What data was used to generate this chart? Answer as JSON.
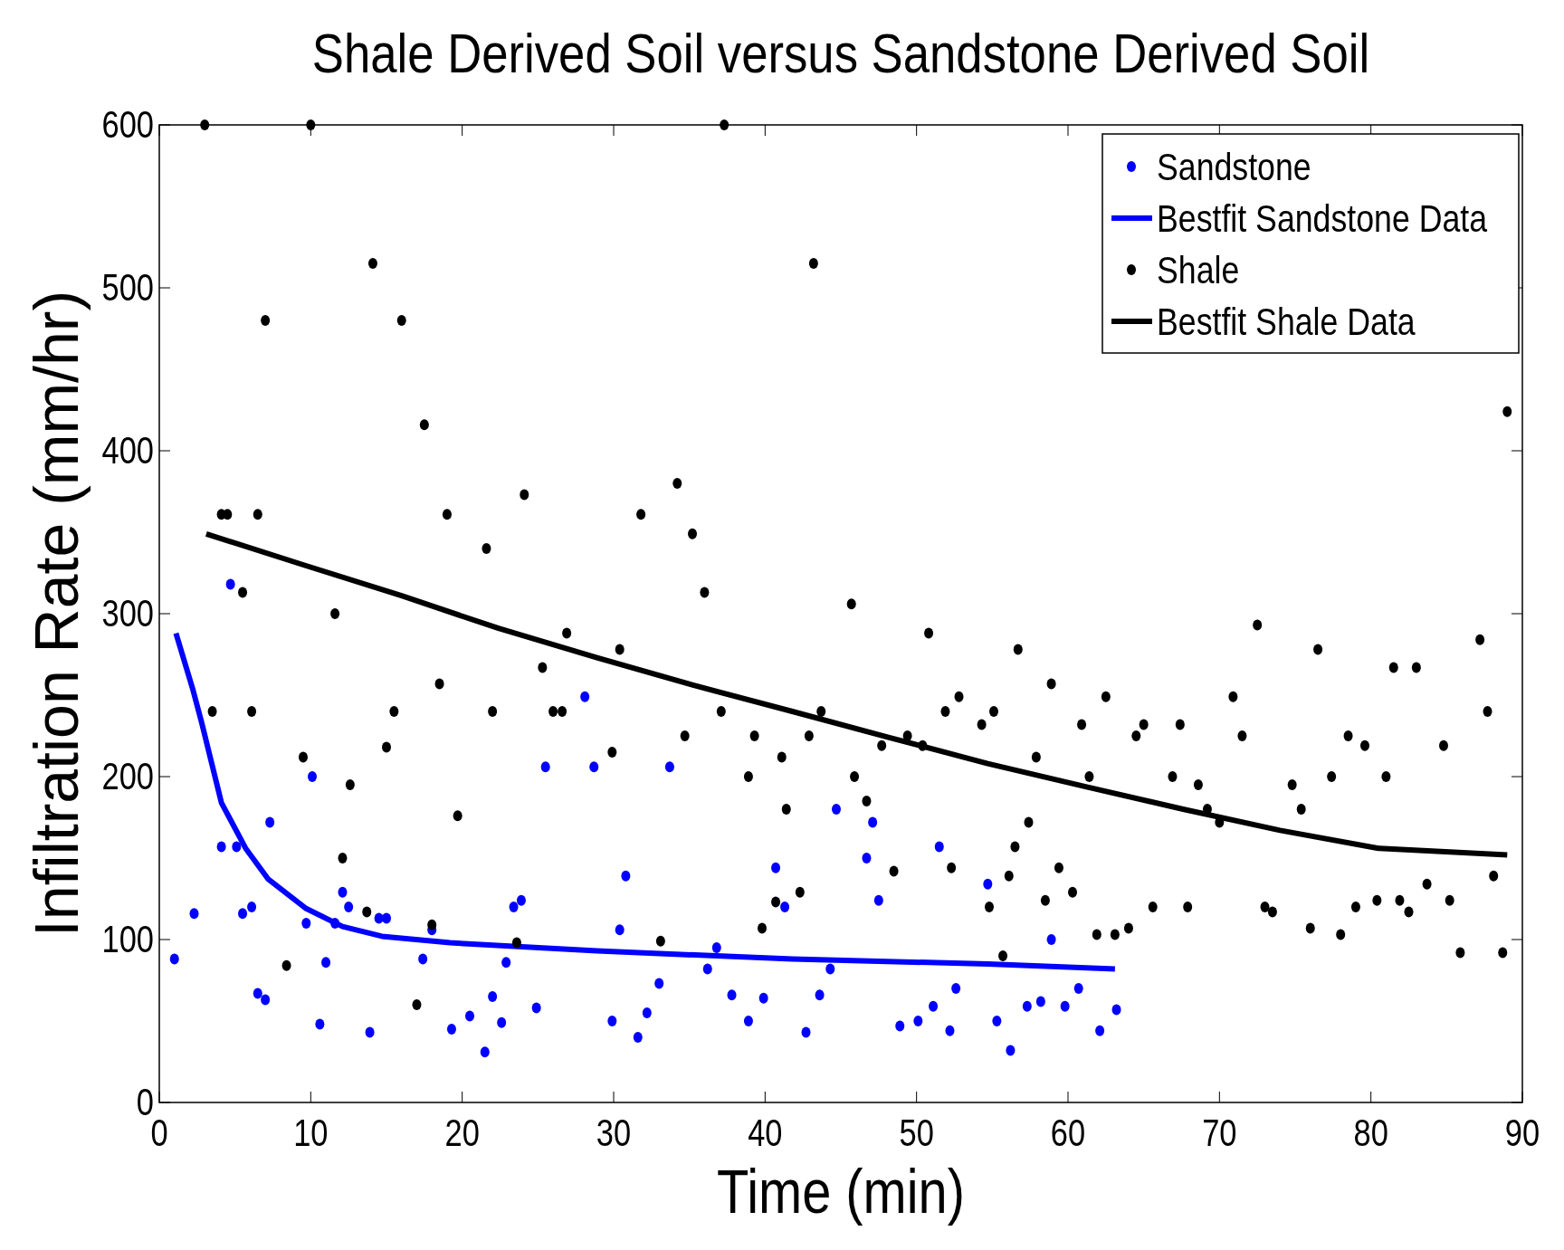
{
  "chart_data": {
    "type": "scatter",
    "title": "Shale Derived Soil versus Sandstone Derived Soil",
    "xlabel": "Time (min)",
    "ylabel": "Infiltration Rate (mm/hr)",
    "xlim": [
      0,
      90
    ],
    "ylim": [
      0,
      600
    ],
    "xticks": [
      0,
      10,
      20,
      30,
      40,
      50,
      60,
      70,
      80,
      90
    ],
    "yticks": [
      0,
      100,
      200,
      300,
      400,
      500,
      600
    ],
    "grid": false,
    "legend": "top right",
    "marker": "circle",
    "series": [
      {
        "name": "Sandstone",
        "color": "#0000ff",
        "x": [
          1.0,
          2.3,
          4.1,
          4.7,
          5.1,
          5.5,
          6.1,
          6.5,
          7.0,
          7.3,
          9.7,
          10.1,
          10.6,
          11.0,
          11.6,
          12.1,
          12.5,
          13.9,
          14.5,
          15.0,
          17.4,
          18.0,
          19.3,
          20.5,
          21.5,
          22.0,
          22.6,
          22.9,
          23.4,
          23.9,
          24.9,
          25.5,
          28.1,
          28.7,
          29.9,
          30.4,
          30.8,
          31.6,
          32.2,
          33.0,
          33.7,
          36.2,
          36.8,
          37.8,
          38.9,
          39.9,
          40.7,
          41.3,
          42.7,
          43.6,
          44.3,
          44.7,
          46.7,
          47.1,
          47.5,
          48.9,
          50.1,
          51.1,
          51.5,
          52.2,
          52.6,
          54.7,
          55.3,
          56.2,
          57.3,
          58.2,
          58.9,
          59.8,
          60.7,
          62.1,
          63.2
        ],
        "values": [
          88,
          116,
          157,
          318,
          157,
          116,
          120,
          67,
          63,
          172,
          110,
          200,
          48,
          86,
          110,
          129,
          120,
          43,
          113,
          113,
          88,
          106,
          45,
          53,
          31,
          65,
          49,
          86,
          120,
          124,
          58,
          206,
          249,
          206,
          50,
          106,
          139,
          40,
          55,
          73,
          206,
          82,
          95,
          66,
          50,
          64,
          144,
          120,
          43,
          66,
          82,
          180,
          150,
          172,
          124,
          47,
          50,
          59,
          157,
          44,
          70,
          134,
          50,
          32,
          59,
          62,
          100,
          59,
          70,
          44,
          57
        ]
      },
      {
        "name": "Bestfit Sandstone Data",
        "type": "line",
        "marker": "none",
        "color": "#0000ff",
        "x": [
          1.1,
          2.2,
          2.8,
          4.1,
          5.7,
          7.2,
          9.7,
          12.1,
          14.7,
          19.2,
          28.9,
          41.8,
          54.7,
          63.1
        ],
        "values": [
          288,
          254,
          233,
          184,
          156,
          137,
          119,
          108,
          102,
          98,
          93,
          88,
          85,
          82
        ]
      },
      {
        "name": "Shale",
        "color": "#000000",
        "x": [
          3.0,
          3.5,
          4.1,
          4.5,
          5.5,
          6.1,
          6.5,
          7.0,
          8.4,
          9.5,
          10.0,
          11.6,
          12.1,
          12.6,
          13.7,
          14.1,
          15.0,
          15.5,
          16.0,
          17.0,
          17.5,
          18.0,
          18.5,
          19.0,
          19.7,
          21.6,
          22.0,
          23.6,
          24.1,
          25.3,
          26.0,
          26.6,
          26.9,
          29.9,
          30.4,
          31.8,
          33.1,
          34.2,
          34.7,
          35.2,
          36.0,
          37.1,
          37.3,
          38.9,
          39.3,
          39.8,
          40.7,
          41.1,
          41.4,
          42.3,
          42.9,
          43.2,
          43.7,
          45.7,
          45.9,
          46.7,
          47.7,
          48.5,
          49.4,
          50.4,
          50.8,
          51.9,
          52.3,
          52.8,
          54.3,
          54.8,
          55.1,
          55.7,
          56.1,
          56.5,
          56.7,
          57.4,
          57.9,
          58.5,
          58.9,
          59.4,
          60.3,
          60.9,
          61.4,
          61.9,
          62.5,
          63.1,
          64.0,
          64.5,
          65.0,
          65.6,
          66.9,
          67.4,
          67.9,
          68.6,
          69.2,
          70.0,
          70.9,
          71.5,
          72.5,
          73.0,
          73.5,
          74.8,
          75.4,
          76.0,
          76.5,
          77.4,
          78.0,
          78.5,
          79.0,
          79.6,
          80.4,
          81.0,
          81.5,
          81.9,
          82.5,
          83.0,
          83.7,
          84.8,
          85.2,
          85.9,
          87.2,
          87.7,
          88.1,
          88.7,
          89.0
        ],
        "values": [
          600,
          240,
          361,
          361,
          313,
          240,
          361,
          480,
          84,
          212,
          600,
          300,
          150,
          195,
          117,
          515,
          218,
          240,
          480,
          60,
          416,
          109,
          257,
          361,
          176,
          340,
          240,
          98,
          373,
          267,
          240,
          240,
          288,
          215,
          278,
          361,
          99,
          380,
          225,
          349,
          313,
          240,
          600,
          200,
          225,
          107,
          123,
          212,
          180,
          129,
          225,
          515,
          240,
          306,
          200,
          185,
          219,
          142,
          225,
          219,
          288,
          240,
          144,
          249,
          232,
          120,
          240,
          90,
          139,
          157,
          278,
          172,
          212,
          124,
          257,
          144,
          129,
          232,
          200,
          103,
          249,
          103,
          107,
          225,
          232,
          120,
          200,
          232,
          120,
          195,
          180,
          172,
          249,
          225,
          293,
          120,
          117,
          195,
          180,
          107,
          278,
          200,
          103,
          225,
          120,
          219,
          124,
          200,
          267,
          124,
          117,
          267,
          134,
          219,
          124,
          92,
          284,
          240,
          139,
          92,
          424
        ]
      },
      {
        "name": "Bestfit Shale Data",
        "type": "line",
        "marker": "none",
        "color": "#000000",
        "x": [
          3.1,
          9.5,
          16,
          22.4,
          28.9,
          35.3,
          41.8,
          48.2,
          54.7,
          61.1,
          67.6,
          74,
          80.5,
          89
        ],
        "values": [
          349,
          330,
          311,
          291,
          273,
          256,
          240,
          224,
          208,
          194,
          180,
          167,
          156,
          152
        ]
      }
    ]
  }
}
